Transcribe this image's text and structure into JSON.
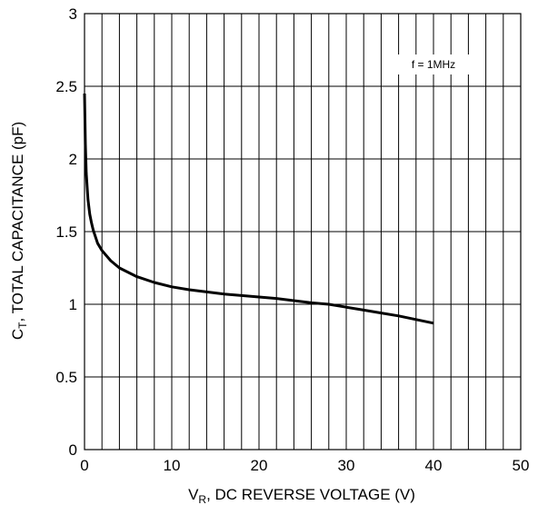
{
  "chart_data": {
    "type": "line",
    "xlabel": {
      "main": "V",
      "sub": "R",
      "rest": ", DC REVERSE VOLTAGE (V)"
    },
    "ylabel": {
      "main": "C",
      "sub": "T",
      "rest": ", TOTAL CAPACITANCE (pF)"
    },
    "xlim": [
      0,
      50
    ],
    "ylim": [
      0,
      3
    ],
    "x_ticks": [
      0,
      10,
      20,
      30,
      40,
      50
    ],
    "x_tick_labels": [
      "0",
      "10",
      "20",
      "30",
      "40",
      "50"
    ],
    "y_ticks": [
      0,
      0.5,
      1,
      1.5,
      2,
      2.5,
      3
    ],
    "y_tick_labels": [
      "0",
      "0.5",
      "1",
      "1.5",
      "2",
      "2.5",
      "3"
    ],
    "grid": true,
    "annotation": "f = 1MHz",
    "series": [
      {
        "x": [
          0,
          0.1,
          0.2,
          0.4,
          0.6,
          0.8,
          1,
          1.5,
          2,
          3,
          4,
          6,
          8,
          10,
          12,
          14,
          16,
          18,
          20,
          22,
          24,
          26,
          28,
          30,
          32,
          34,
          36,
          38,
          40
        ],
        "y": [
          2.45,
          2.1,
          1.9,
          1.72,
          1.62,
          1.56,
          1.51,
          1.42,
          1.37,
          1.3,
          1.25,
          1.19,
          1.15,
          1.12,
          1.1,
          1.085,
          1.07,
          1.06,
          1.05,
          1.04,
          1.025,
          1.01,
          1.0,
          0.98,
          0.96,
          0.94,
          0.92,
          0.895,
          0.87
        ]
      }
    ]
  }
}
